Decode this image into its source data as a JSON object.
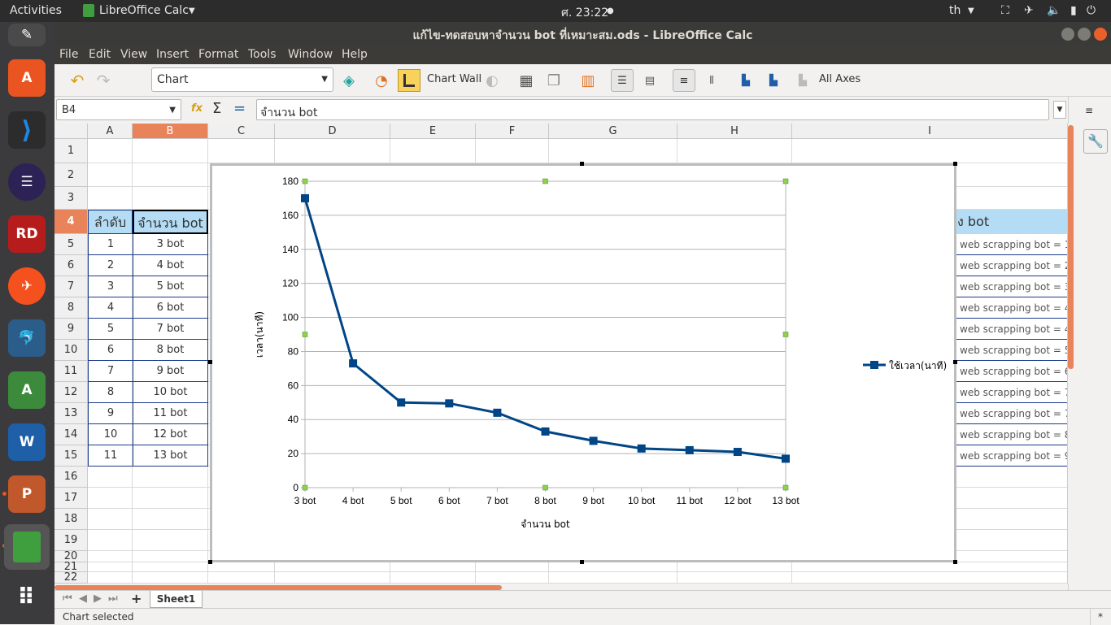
{
  "topbar": {
    "activities": "Activities",
    "app_menu": "LibreOffice Calc",
    "clock": "ศ. 23:22",
    "lang": "th"
  },
  "window": {
    "title": "แก้ไข-ทดสอบหาจำนวน bot ที่เหมาะสม.ods - LibreOffice Calc"
  },
  "menu": {
    "file": "File",
    "edit": "Edit",
    "view": "View",
    "insert": "Insert",
    "format": "Format",
    "tools": "Tools",
    "window": "Window",
    "help": "Help"
  },
  "toolbar": {
    "element_select": "Chart",
    "chart_wall": "Chart Wall",
    "all_axes": "All Axes"
  },
  "formula": {
    "name_box": "B4",
    "content": "จำนวน bot"
  },
  "columns": [
    "A",
    "B",
    "C",
    "D",
    "E",
    "F",
    "G",
    "H",
    "I"
  ],
  "rows": [
    "1",
    "2",
    "3",
    "4",
    "5",
    "6",
    "7",
    "8",
    "9",
    "10",
    "11",
    "12",
    "13",
    "14",
    "15",
    "16",
    "17",
    "18",
    "19",
    "20",
    "21",
    "22"
  ],
  "table": {
    "header_a": "ลำดับ",
    "header_b": "จำนวน bot",
    "header_i": "ง bot",
    "order": [
      "1",
      "2",
      "3",
      "4",
      "5",
      "6",
      "7",
      "8",
      "9",
      "10",
      "11"
    ],
    "bots": [
      "3 bot",
      "4 bot",
      "5 bot",
      "6 bot",
      "7 bot",
      "8 bot",
      "9 bot",
      "10 bot",
      "11 bot",
      "12 bot",
      "13 bot"
    ],
    "col_i": [
      "web scrapping bot = 1",
      "web scrapping bot = 2",
      "web scrapping bot = 3",
      "web scrapping bot = 4",
      "web scrapping bot = 4",
      "web scrapping bot = 5",
      "web scrapping bot = 6",
      "web scrapping bot = 7",
      "web scrapping bot = 7",
      "web scrapping bot = 8",
      "web scrapping bot = 9"
    ]
  },
  "chart_data": {
    "type": "line",
    "categories": [
      "3 bot",
      "4 bot",
      "5 bot",
      "6 bot",
      "7 bot",
      "8 bot",
      "9 bot",
      "10 bot",
      "11 bot",
      "12 bot",
      "13 bot"
    ],
    "series": [
      {
        "name": "ใช้เวลา(นาที)",
        "values": [
          170,
          73,
          50,
          49.5,
          44,
          33,
          27.5,
          23,
          22,
          21,
          17
        ]
      }
    ],
    "xlabel": "จำนวน bot",
    "ylabel": "เวลา(นาที)",
    "ylim": [
      0,
      180
    ],
    "yticks": [
      "0",
      "20",
      "40",
      "60",
      "80",
      "100",
      "120",
      "140",
      "160",
      "180"
    ],
    "grid": true,
    "legend": "right",
    "color": "#004586"
  },
  "sheet_tabs": [
    "Sheet1"
  ],
  "status": {
    "text": "Chart selected",
    "mark": "*"
  }
}
